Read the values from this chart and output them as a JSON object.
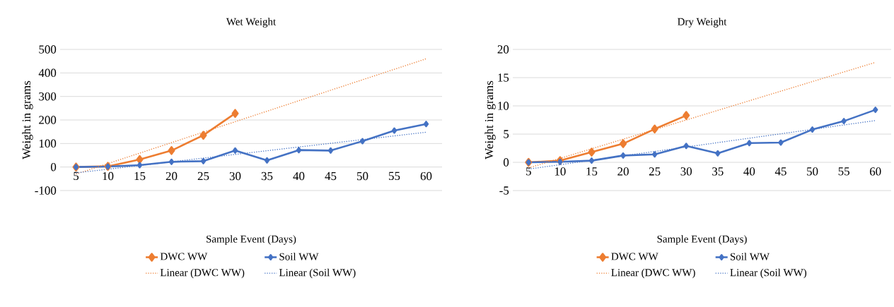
{
  "chart_data": [
    {
      "type": "line",
      "title": "Wet Weight",
      "xlabel": "Sample Event (Days)",
      "ylabel": "Weight in grams",
      "x": [
        5,
        10,
        15,
        20,
        25,
        30,
        35,
        40,
        45,
        50,
        55,
        60
      ],
      "xlim": [
        2.5,
        62.5
      ],
      "xticks": [
        5,
        10,
        15,
        20,
        25,
        30,
        35,
        40,
        45,
        50,
        55,
        60
      ],
      "ylim": [
        -100,
        500
      ],
      "yticks": [
        -100,
        0,
        100,
        200,
        300,
        400,
        500
      ],
      "grid": "y",
      "legend": "bottom",
      "marker": "diamond",
      "series": [
        {
          "name": "DWC WW",
          "color": "#ed7d31",
          "x": [
            5,
            10,
            15,
            20,
            25,
            30
          ],
          "values": [
            0,
            3,
            32,
            70,
            135,
            228
          ]
        },
        {
          "name": "Soil WW",
          "color": "#4472c4",
          "values": [
            0,
            2,
            8,
            22,
            25,
            70,
            28,
            72,
            70,
            110,
            155,
            183
          ]
        },
        {
          "name": "Linear (DWC WW)",
          "color": "#ed7d31",
          "type": "line",
          "marker": "none",
          "line_style": "dotted",
          "x": [
            5,
            60
          ],
          "values": [
            -30,
            460
          ]
        },
        {
          "name": "Linear (Soil WW)",
          "color": "#4472c4",
          "type": "line",
          "marker": "none",
          "line_style": "dotted",
          "x": [
            5,
            60
          ],
          "values": [
            -25,
            148
          ]
        }
      ]
    },
    {
      "type": "line",
      "title": "Dry Weight",
      "xlabel": "Sample Event (Days)",
      "ylabel": "Weight in grams",
      "x": [
        5,
        10,
        15,
        20,
        25,
        30,
        35,
        40,
        45,
        50,
        55,
        60
      ],
      "xlim": [
        2.5,
        62.5
      ],
      "xticks": [
        5,
        10,
        15,
        20,
        25,
        30,
        35,
        40,
        45,
        50,
        55,
        60
      ],
      "ylim": [
        -5,
        20
      ],
      "yticks": [
        -5,
        0,
        5,
        10,
        15,
        20
      ],
      "grid": "y",
      "legend": "bottom",
      "marker": "diamond",
      "series": [
        {
          "name": "DWC WW",
          "color": "#ed7d31",
          "x": [
            5,
            10,
            15,
            20,
            25,
            30
          ],
          "values": [
            0,
            0.3,
            1.8,
            3.3,
            5.9,
            8.3
          ]
        },
        {
          "name": "Soil WW",
          "color": "#4472c4",
          "values": [
            0,
            0.1,
            0.3,
            1.2,
            1.4,
            2.9,
            1.6,
            3.4,
            3.5,
            5.8,
            7.3,
            9.3
          ]
        },
        {
          "name": "Linear (DWC WW)",
          "color": "#ed7d31",
          "type": "line",
          "marker": "none",
          "line_style": "dotted",
          "x": [
            5,
            60
          ],
          "values": [
            -1.0,
            17.7
          ]
        },
        {
          "name": "Linear (Soil WW)",
          "color": "#4472c4",
          "type": "line",
          "marker": "none",
          "line_style": "dotted",
          "x": [
            5,
            60
          ],
          "values": [
            -1.2,
            7.4
          ]
        }
      ]
    }
  ]
}
